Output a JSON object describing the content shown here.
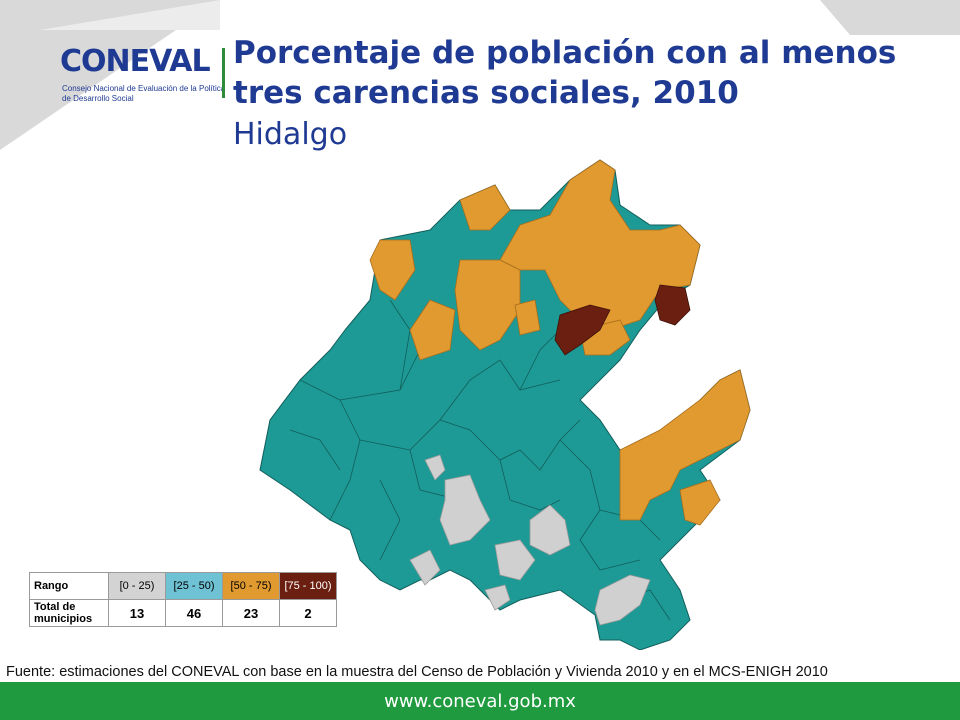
{
  "header": {
    "logo_word": "CONEVAL",
    "logo_subtitle": "Consejo Nacional de Evaluación de la Política de Desarrollo Social",
    "title_line1": "Porcentaje de población con al menos",
    "title_line2": "tres carencias sociales, 2010",
    "subtitle": "Hidalgo"
  },
  "legend": {
    "range_label": "Rango",
    "total_label_line1": "Total de",
    "total_label_line2": "municipios",
    "classes": [
      {
        "range": "[0 - 25)",
        "color": "#d3d3d3",
        "count": "13",
        "text_color": "#000000"
      },
      {
        "range": "[25 - 50)",
        "color": "#6fc2d4",
        "count": "46",
        "text_color": "#000000"
      },
      {
        "range": "[50 - 75)",
        "color": "#e09a30",
        "count": "23",
        "text_color": "#000000"
      },
      {
        "range": "[75 - 100)",
        "color": "#6b1f10",
        "count": "2",
        "text_color": "#ffffff"
      }
    ]
  },
  "map_colors": {
    "teal": "#1d9a95",
    "orange": "#e09a30",
    "gray": "#d0d0d0",
    "maroon": "#6b1f10"
  },
  "source": "Fuente: estimaciones del CONEVAL con base en la muestra del Censo de Población y Vivienda 2010 y en el MCS-ENIGH 2010",
  "footer": {
    "url": "www.coneval.gob.mx",
    "color": "#1f9a3e"
  }
}
